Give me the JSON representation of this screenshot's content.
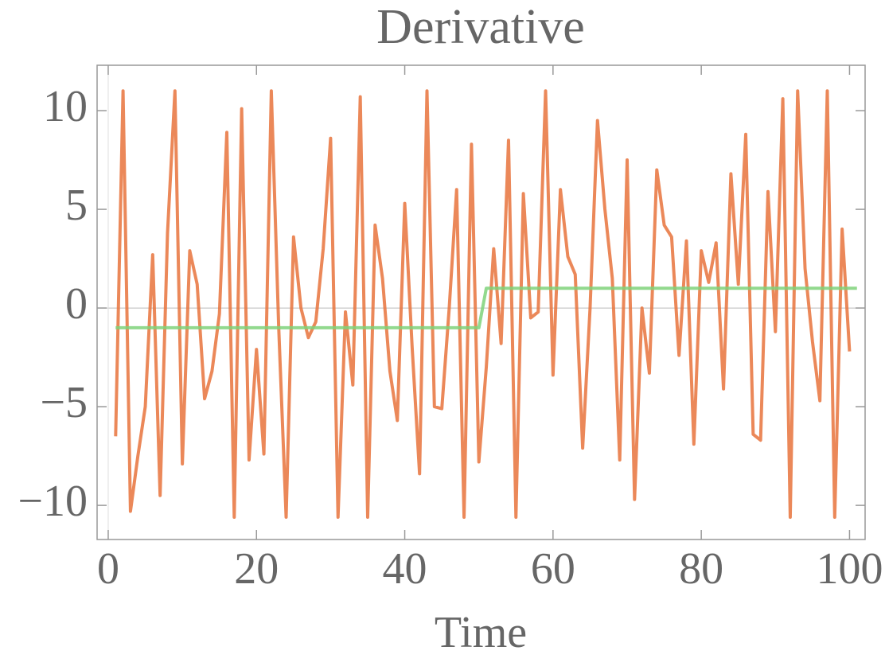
{
  "chart_data": {
    "type": "line",
    "title": "Derivative",
    "x_label": "Time",
    "xlim": [
      -1.5,
      102.1
    ],
    "ylim": [
      -11.73,
      12.3
    ],
    "xticks": [
      0,
      20,
      40,
      60,
      80,
      100
    ],
    "yticks": [
      {
        "value": -10,
        "label": "−10"
      },
      {
        "value": -5,
        "label": "−5"
      },
      0,
      5,
      10
    ],
    "series": [
      {
        "color": "#e8733c",
        "x": [
          1,
          2,
          3,
          4,
          5,
          6,
          7,
          8,
          9,
          10,
          11,
          12,
          13,
          14,
          15,
          16,
          17,
          18,
          19,
          20,
          21,
          22,
          23,
          24,
          25,
          26,
          27,
          28,
          29,
          30,
          31,
          32,
          33,
          34,
          35,
          36,
          37,
          38,
          39,
          40,
          41,
          42,
          43,
          44,
          45,
          46,
          47,
          48,
          49,
          50,
          51,
          52,
          53,
          54,
          55,
          56,
          57,
          58,
          59,
          60,
          61,
          62,
          63,
          64,
          65,
          66,
          67,
          68,
          69,
          70,
          71,
          72,
          73,
          74,
          75,
          76,
          77,
          78,
          79,
          80,
          81,
          82,
          83,
          84,
          85,
          86,
          87,
          88,
          89,
          90,
          91,
          92,
          93,
          94,
          95,
          96,
          97,
          98,
          99,
          100
        ],
        "values": [
          -6.5,
          11,
          -10.3,
          -7.5,
          -5,
          2.7,
          -9.5,
          3.8,
          11,
          -7.9,
          2.9,
          1.2,
          -4.6,
          -3.2,
          -0.3,
          8.9,
          -10.6,
          10.1,
          -7.7,
          -2.1,
          -7.4,
          11,
          -1,
          -10.6,
          3.6,
          0,
          -1.5,
          -0.7,
          3,
          8.6,
          -10.6,
          -0.2,
          -3.9,
          10.7,
          -10.6,
          4.2,
          1.5,
          -3.2,
          -5.7,
          5.3,
          -2,
          -8.4,
          11,
          -5,
          -5.1,
          0,
          6,
          -10.6,
          8.3,
          -7.8,
          -3,
          3,
          -1.8,
          8.5,
          -10.6,
          5.8,
          -0.5,
          -0.2,
          11,
          -3.4,
          6,
          2.6,
          1.7,
          -7.1,
          0,
          9.5,
          5,
          1.5,
          -7.7,
          7.5,
          -9.7,
          0,
          -3.3,
          7,
          4.2,
          3.6,
          -2.4,
          3.4,
          -6.9,
          2.9,
          1.3,
          3.3,
          -4.1,
          6.8,
          1.2,
          8.8,
          -6.4,
          -6.7,
          5.9,
          -1.2,
          10.6,
          -10.6,
          11,
          2,
          -1.7,
          -4.7,
          11,
          -10.6,
          4,
          -2.2
        ]
      },
      {
        "color": "#7fd27a",
        "x": [
          1,
          50,
          51,
          101
        ],
        "values": [
          -1,
          -1,
          1,
          1
        ]
      }
    ]
  }
}
